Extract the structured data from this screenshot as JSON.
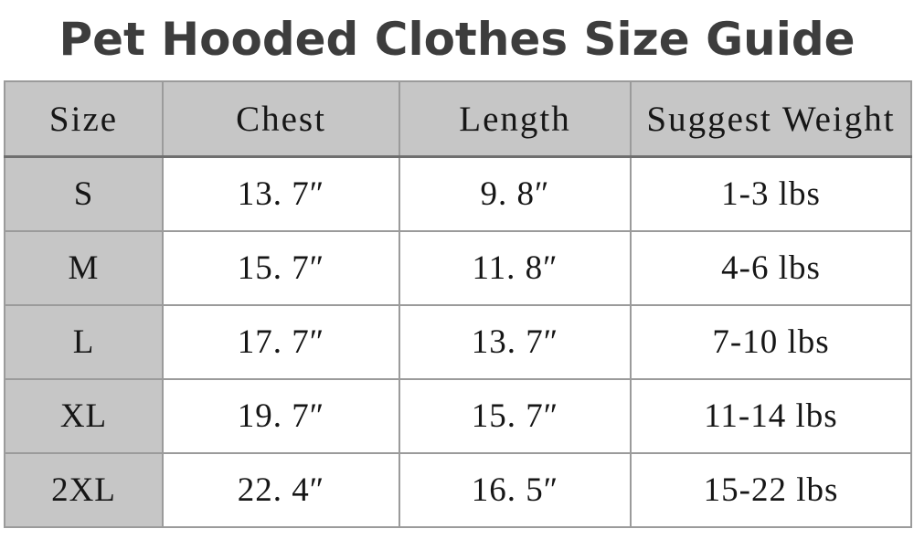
{
  "title": "Pet Hooded Clothes Size Guide",
  "colors": {
    "title_text": "#3d3d3d",
    "header_bg": "#c6c6c6",
    "size_column_bg": "#c6c6c6",
    "grid_border": "#9b9b9b",
    "header_bottom_border": "#6f6f6f",
    "cell_text": "#161616",
    "page_bg": "#ffffff"
  },
  "chart_data": {
    "type": "table",
    "title": "Pet Hooded Clothes Size Guide",
    "columns": [
      "Size",
      "Chest",
      "Length",
      "Suggest Weight"
    ],
    "rows": [
      [
        "S",
        "13. 7″",
        "9. 8″",
        "1-3 lbs"
      ],
      [
        "M",
        "15. 7″",
        "11. 8″",
        "4-6 lbs"
      ],
      [
        "L",
        "17. 7″",
        "13. 7″",
        "7-10 lbs"
      ],
      [
        "XL",
        "19. 7″",
        "15. 7″",
        "11-14 lbs"
      ],
      [
        "2XL",
        "22. 4″",
        "16. 5″",
        "15-22 lbs"
      ]
    ],
    "units": {
      "chest": "inches",
      "length": "inches",
      "weight": "lbs"
    },
    "layout_hints": {
      "header_row_shaded": true,
      "first_column_shaded": true,
      "grid": true
    }
  }
}
